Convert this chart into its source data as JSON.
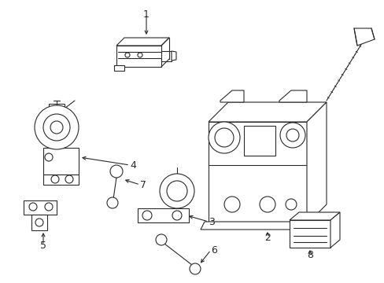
{
  "bg_color": "#ffffff",
  "line_color": "#2a2a2a",
  "lw": 0.8,
  "fig_width": 4.89,
  "fig_height": 3.6,
  "dpi": 100
}
